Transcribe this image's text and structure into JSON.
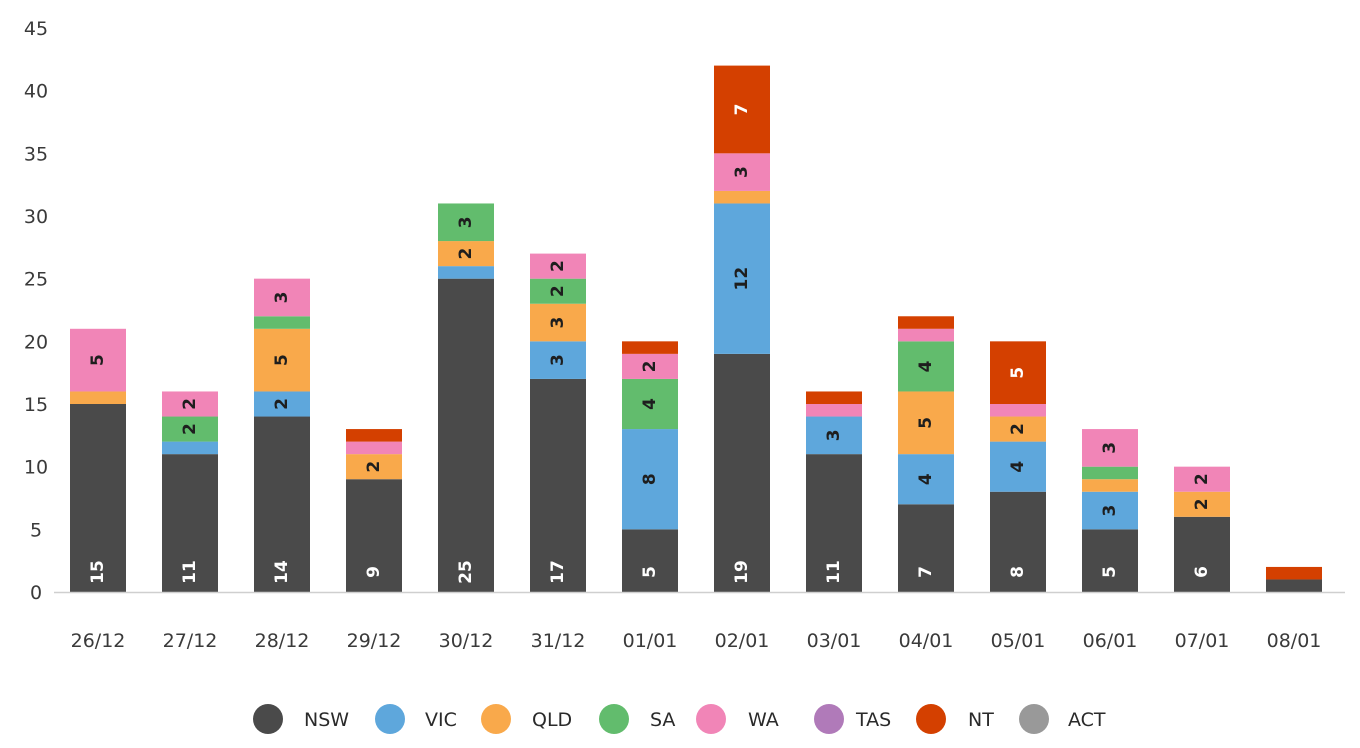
{
  "chart_data": {
    "type": "bar",
    "stacked": true,
    "categories": [
      "26/12",
      "27/12",
      "28/12",
      "29/12",
      "30/12",
      "31/12",
      "01/01",
      "02/01",
      "03/01",
      "04/01",
      "05/01",
      "06/01",
      "07/01",
      "08/01"
    ],
    "series": [
      {
        "name": "NSW",
        "color": "#4a4a4a",
        "values": [
          15,
          11,
          14,
          9,
          25,
          17,
          5,
          19,
          11,
          7,
          8,
          5,
          6,
          1
        ],
        "labels": [
          "15",
          "11",
          "14",
          "9",
          "25",
          "17",
          "5",
          "19",
          "11",
          "7",
          "8",
          "5",
          "6",
          ""
        ]
      },
      {
        "name": "VIC",
        "color": "#5ea7dc",
        "values": [
          0,
          1,
          2,
          0,
          1,
          3,
          8,
          12,
          3,
          4,
          4,
          3,
          0,
          0
        ],
        "labels": [
          "",
          "",
          "2",
          "",
          "",
          "3",
          "8",
          "12",
          "3",
          "4",
          "4",
          "3",
          "",
          ""
        ]
      },
      {
        "name": "QLD",
        "color": "#f9a94b",
        "values": [
          1,
          0,
          5,
          2,
          2,
          3,
          0,
          1,
          0,
          5,
          2,
          1,
          2,
          0
        ],
        "labels": [
          "",
          "",
          "5",
          "2",
          "2",
          "3",
          "",
          "",
          "",
          "5",
          "2",
          "",
          "2",
          ""
        ]
      },
      {
        "name": "SA",
        "color": "#62bc6d",
        "values": [
          0,
          2,
          1,
          0,
          3,
          2,
          4,
          0,
          0,
          4,
          0,
          1,
          0,
          0
        ],
        "labels": [
          "",
          "2",
          "",
          "",
          "3",
          "2",
          "4",
          "",
          "",
          "4",
          "",
          "",
          "",
          ""
        ]
      },
      {
        "name": "WA",
        "color": "#f185b7",
        "values": [
          5,
          2,
          3,
          1,
          0,
          2,
          2,
          3,
          1,
          1,
          1,
          3,
          2,
          0
        ],
        "labels": [
          "5",
          "2",
          "3",
          "",
          "",
          "2",
          "2",
          "3",
          "",
          "",
          "",
          "3",
          "2",
          ""
        ]
      },
      {
        "name": "TAS",
        "color": "#b07ab9",
        "values": [
          0,
          0,
          0,
          0,
          0,
          0,
          0,
          0,
          0,
          0,
          0,
          0,
          0,
          0
        ],
        "labels": [
          "",
          "",
          "",
          "",
          "",
          "",
          "",
          "",
          "",
          "",
          "",
          "",
          "",
          ""
        ]
      },
      {
        "name": "NT",
        "color": "#d44000",
        "values": [
          0,
          0,
          0,
          1,
          0,
          0,
          1,
          7,
          1,
          1,
          5,
          0,
          0,
          1
        ],
        "labels": [
          "",
          "",
          "",
          "",
          "",
          "",
          "",
          "7",
          "",
          "",
          "5",
          "",
          "",
          ""
        ]
      },
      {
        "name": "ACT",
        "color": "#999999",
        "values": [
          0,
          0,
          0,
          0,
          0,
          0,
          0,
          0,
          0,
          0,
          0,
          0,
          0,
          0
        ],
        "labels": [
          "",
          "",
          "",
          "",
          "",
          "",
          "",
          "",
          "",
          "",
          "",
          "",
          "",
          ""
        ]
      }
    ],
    "ylim": [
      0,
      45
    ],
    "yticks": [
      "0",
      "5",
      "10",
      "15",
      "20",
      "25",
      "30",
      "35",
      "40",
      "45"
    ],
    "title": "",
    "xlabel": "",
    "ylabel": "",
    "grid": false,
    "legend_position": "bottom"
  }
}
